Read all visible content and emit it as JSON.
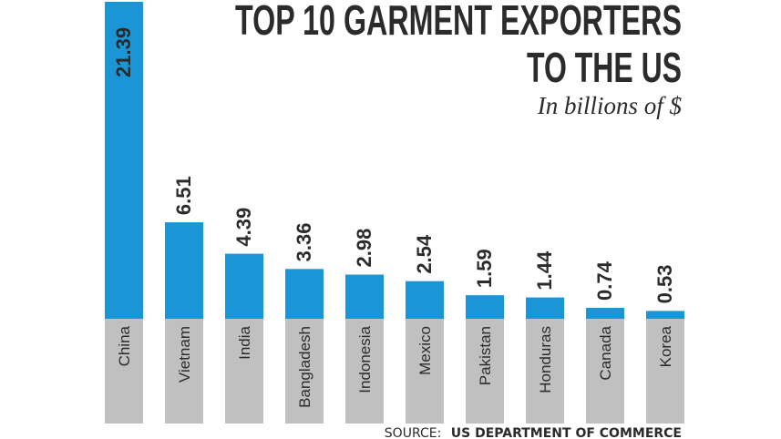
{
  "chart_data": {
    "type": "bar",
    "title": "TOP 10 GARMENT EXPORTERS TO THE US",
    "title_lines": [
      "TOP 10 GARMENT EXPORTERS",
      "TO THE US"
    ],
    "subtitle": "In billions of $",
    "categories": [
      "China",
      "Vietnam",
      "India",
      "Bangladesh",
      "Indonesia",
      "Mexico",
      "Pakistan",
      "Honduras",
      "Canada",
      "Korea"
    ],
    "values": [
      21.39,
      6.51,
      4.39,
      3.36,
      2.98,
      2.54,
      1.59,
      1.44,
      0.74,
      0.53
    ],
    "value_labels": [
      "21.39",
      "6.51",
      "4.39",
      "3.36",
      "2.98",
      "2.54",
      "1.59",
      "1.44",
      "0.74",
      "0.53"
    ],
    "ylim": [
      0,
      21.39
    ],
    "grid": false,
    "colors": {
      "bar": "#1a95d6",
      "label_band": "#c0c0c0",
      "text": "#2b2b2b"
    },
    "source_label": "SOURCE:",
    "source": "US DEPARTMENT OF COMMERCE"
  }
}
